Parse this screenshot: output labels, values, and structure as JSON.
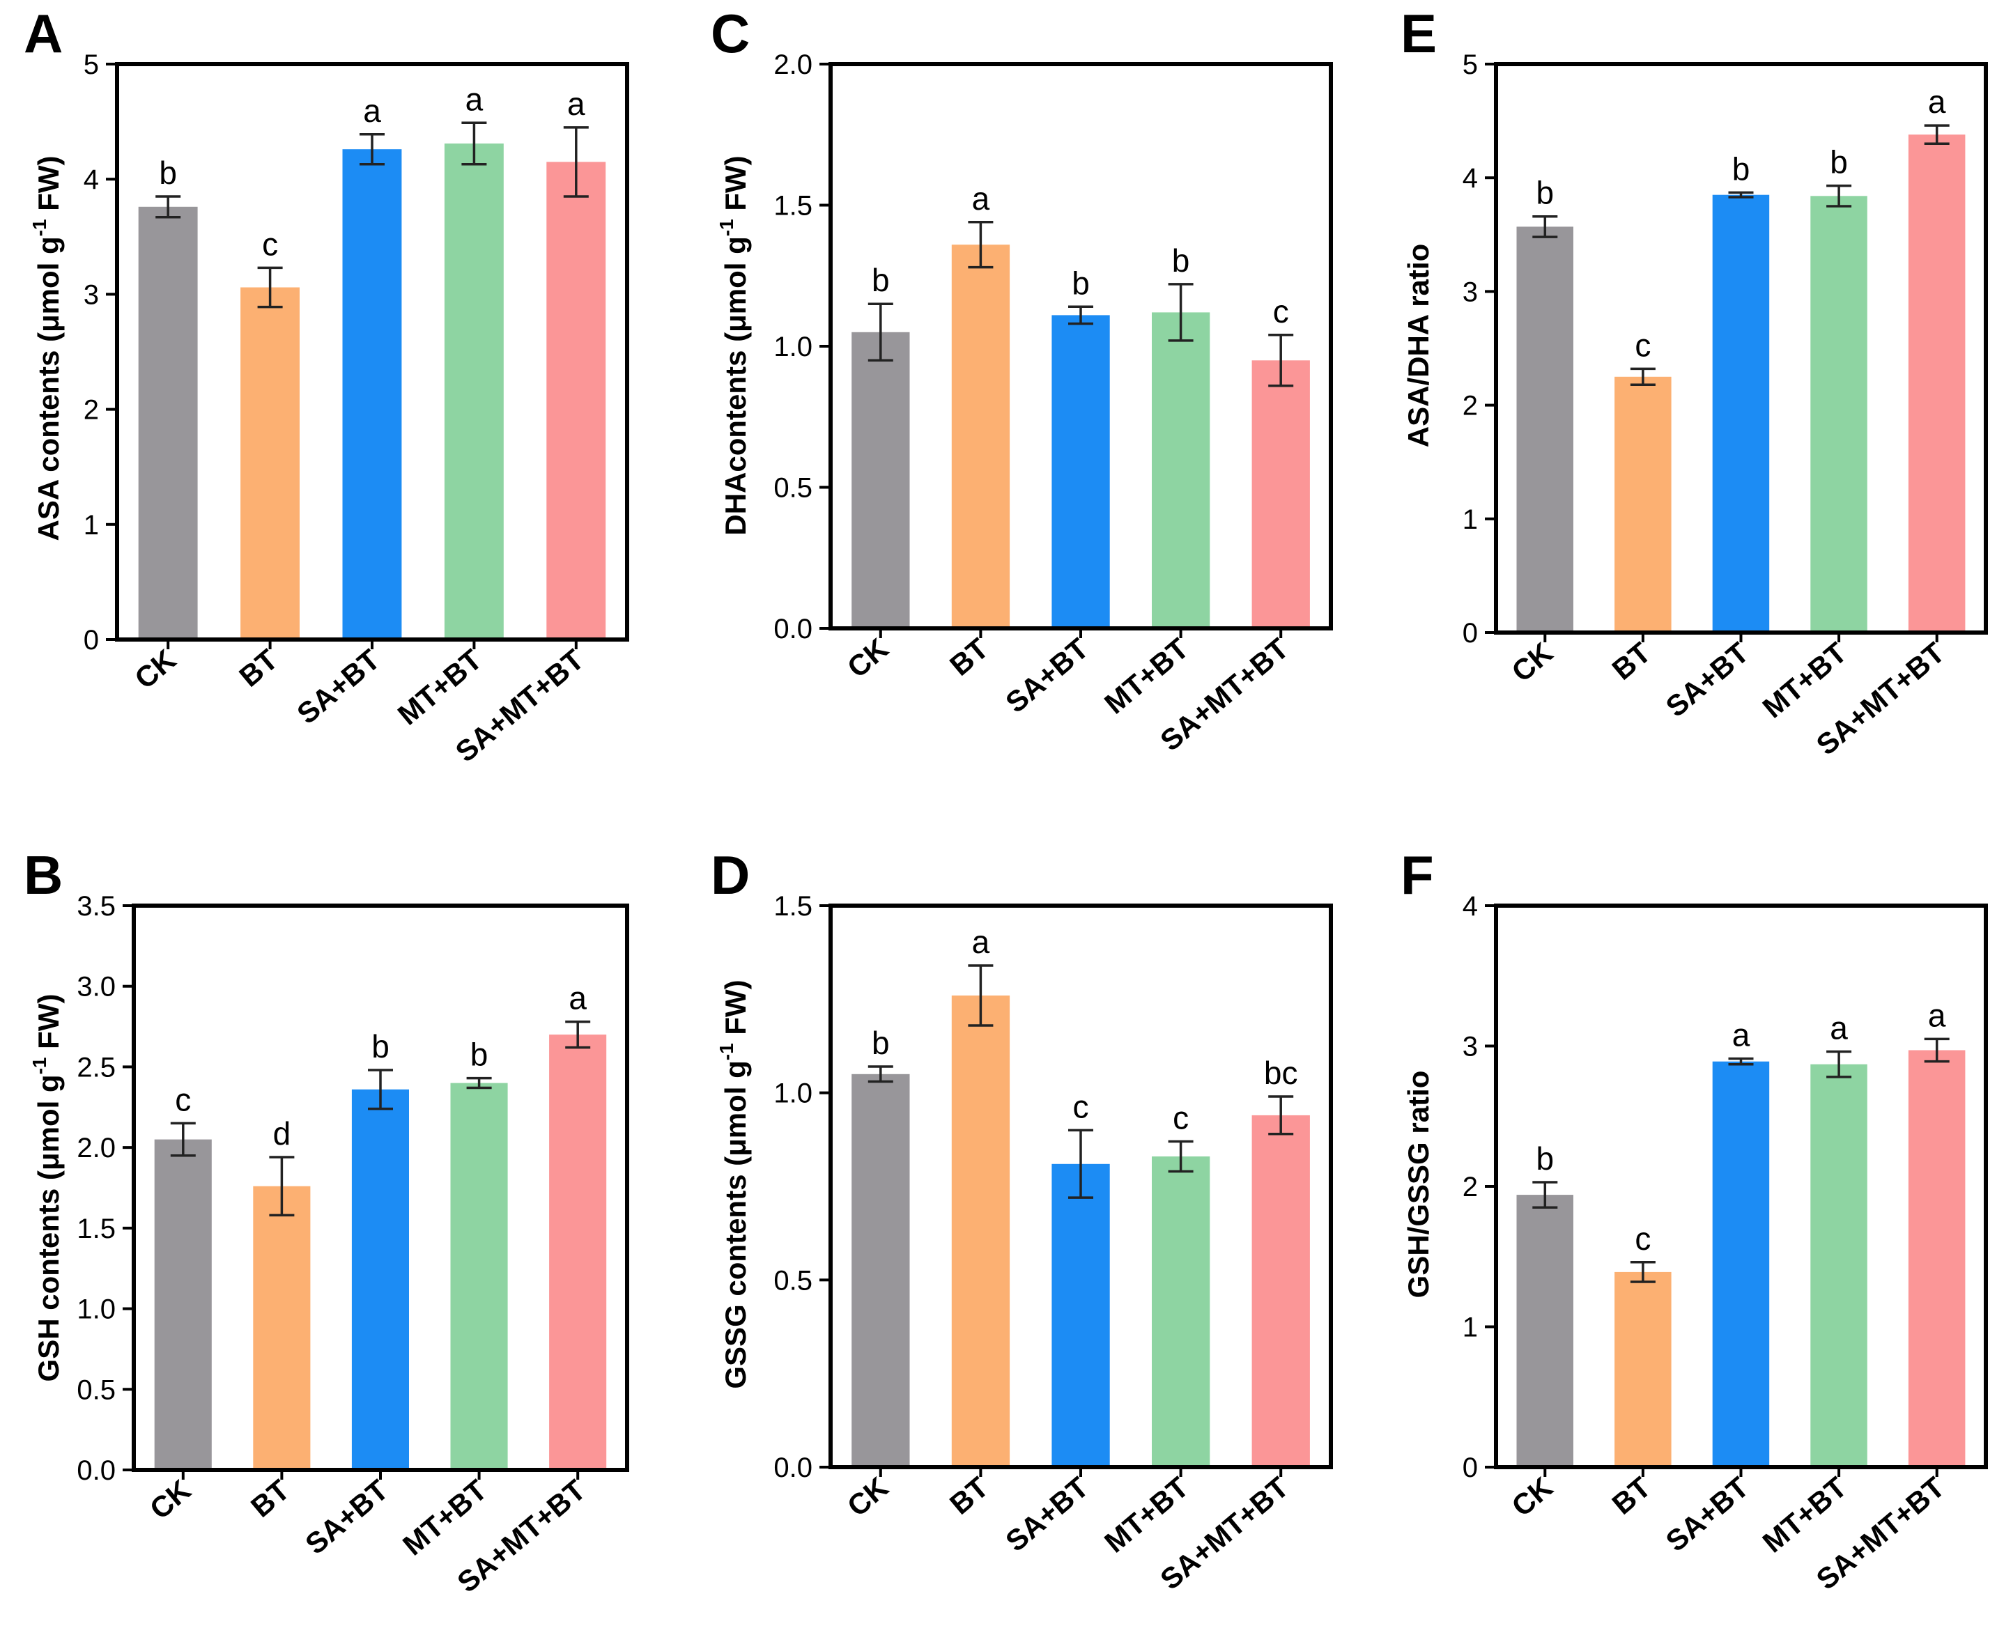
{
  "colors": {
    "CK": "#98969a",
    "BT": "#fcb072",
    "SA+BT": "#1c8cf4",
    "MT+BT": "#8ed4a2",
    "SA+MT+BT": "#fb9697",
    "axis": "#000000"
  },
  "chart_data": [
    {
      "id": "A",
      "panel": "A",
      "type": "bar",
      "ylabel": {
        "pre": "ASA contents (μmol g",
        "sup": "-1",
        "post": " FW)"
      },
      "categories": [
        "CK",
        "BT",
        "SA+BT",
        "MT+BT",
        "SA+MT+BT"
      ],
      "values": [
        3.76,
        3.06,
        4.26,
        4.31,
        4.15
      ],
      "errors": [
        0.09,
        0.17,
        0.13,
        0.18,
        0.3
      ],
      "letters": [
        "b",
        "c",
        "a",
        "a",
        "a"
      ],
      "ylim": [
        0,
        5
      ],
      "ticks": [
        0,
        1,
        2,
        3,
        4,
        5
      ],
      "tick_labels": [
        "0",
        "1",
        "2",
        "3",
        "4",
        "5"
      ]
    },
    {
      "id": "B",
      "panel": "B",
      "type": "bar",
      "ylabel": {
        "pre": "GSH contents (μmol g",
        "sup": "-1",
        "post": " FW)"
      },
      "categories": [
        "CK",
        "BT",
        "SA+BT",
        "MT+BT",
        "SA+MT+BT"
      ],
      "values": [
        2.05,
        1.76,
        2.36,
        2.4,
        2.7
      ],
      "errors": [
        0.1,
        0.18,
        0.12,
        0.03,
        0.08
      ],
      "letters": [
        "c",
        "d",
        "b",
        "b",
        "a"
      ],
      "ylim": [
        0,
        3.5
      ],
      "ticks": [
        0,
        0.5,
        1,
        1.5,
        2,
        2.5,
        3,
        3.5
      ],
      "tick_labels": [
        "0.0",
        "0.5",
        "1.0",
        "1.5",
        "2.0",
        "2.5",
        "3.0",
        "3.5"
      ]
    },
    {
      "id": "C",
      "panel": "C",
      "type": "bar",
      "ylabel": {
        "pre": "DHAcontents (μmol g",
        "sup": "-1",
        "post": " FW)"
      },
      "categories": [
        "CK",
        "BT",
        "SA+BT",
        "MT+BT",
        "SA+MT+BT"
      ],
      "values": [
        1.05,
        1.36,
        1.11,
        1.12,
        0.95
      ],
      "errors": [
        0.1,
        0.08,
        0.03,
        0.1,
        0.09
      ],
      "letters": [
        "b",
        "a",
        "b",
        "b",
        "c"
      ],
      "ylim": [
        0,
        2
      ],
      "ticks": [
        0,
        0.5,
        1,
        1.5,
        2
      ],
      "tick_labels": [
        "0.0",
        "0.5",
        "1.0",
        "1.5",
        "2.0"
      ]
    },
    {
      "id": "D",
      "panel": "D",
      "type": "bar",
      "ylabel": {
        "pre": "GSSG contents (μmol g",
        "sup": "-1",
        "post": " FW)"
      },
      "categories": [
        "CK",
        "BT",
        "SA+BT",
        "MT+BT",
        "SA+MT+BT"
      ],
      "values": [
        1.05,
        1.26,
        0.81,
        0.83,
        0.94
      ],
      "errors": [
        0.02,
        0.08,
        0.09,
        0.04,
        0.05
      ],
      "letters": [
        "b",
        "a",
        "c",
        "c",
        "bc"
      ],
      "ylim": [
        0,
        1.5
      ],
      "ticks": [
        0,
        0.5,
        1,
        1.5
      ],
      "tick_labels": [
        "0.0",
        "0.5",
        "1.0",
        "1.5"
      ]
    },
    {
      "id": "E",
      "panel": "E",
      "type": "bar",
      "ylabel": {
        "pre": "ASA/DHA ratio",
        "sup": "",
        "post": ""
      },
      "categories": [
        "CK",
        "BT",
        "SA+BT",
        "MT+BT",
        "SA+MT+BT"
      ],
      "values": [
        3.57,
        2.25,
        3.85,
        3.84,
        4.38
      ],
      "errors": [
        0.09,
        0.07,
        0.02,
        0.09,
        0.08
      ],
      "letters": [
        "b",
        "c",
        "b",
        "b",
        "a"
      ],
      "ylim": [
        0,
        5
      ],
      "ticks": [
        0,
        1,
        2,
        3,
        4,
        5
      ],
      "tick_labels": [
        "0",
        "1",
        "2",
        "3",
        "4",
        "5"
      ]
    },
    {
      "id": "F",
      "panel": "F",
      "type": "bar",
      "ylabel": {
        "pre": "GSH/GSSG ratio",
        "sup": "",
        "post": ""
      },
      "categories": [
        "CK",
        "BT",
        "SA+BT",
        "MT+BT",
        "SA+MT+BT"
      ],
      "values": [
        1.94,
        1.39,
        2.89,
        2.87,
        2.97
      ],
      "errors": [
        0.09,
        0.07,
        0.02,
        0.09,
        0.08
      ],
      "letters": [
        "b",
        "c",
        "a",
        "a",
        "a"
      ],
      "ylim": [
        0,
        4
      ],
      "ticks": [
        0,
        1,
        2,
        3,
        4
      ],
      "tick_labels": [
        "0",
        "1",
        "2",
        "3",
        "4"
      ]
    }
  ]
}
